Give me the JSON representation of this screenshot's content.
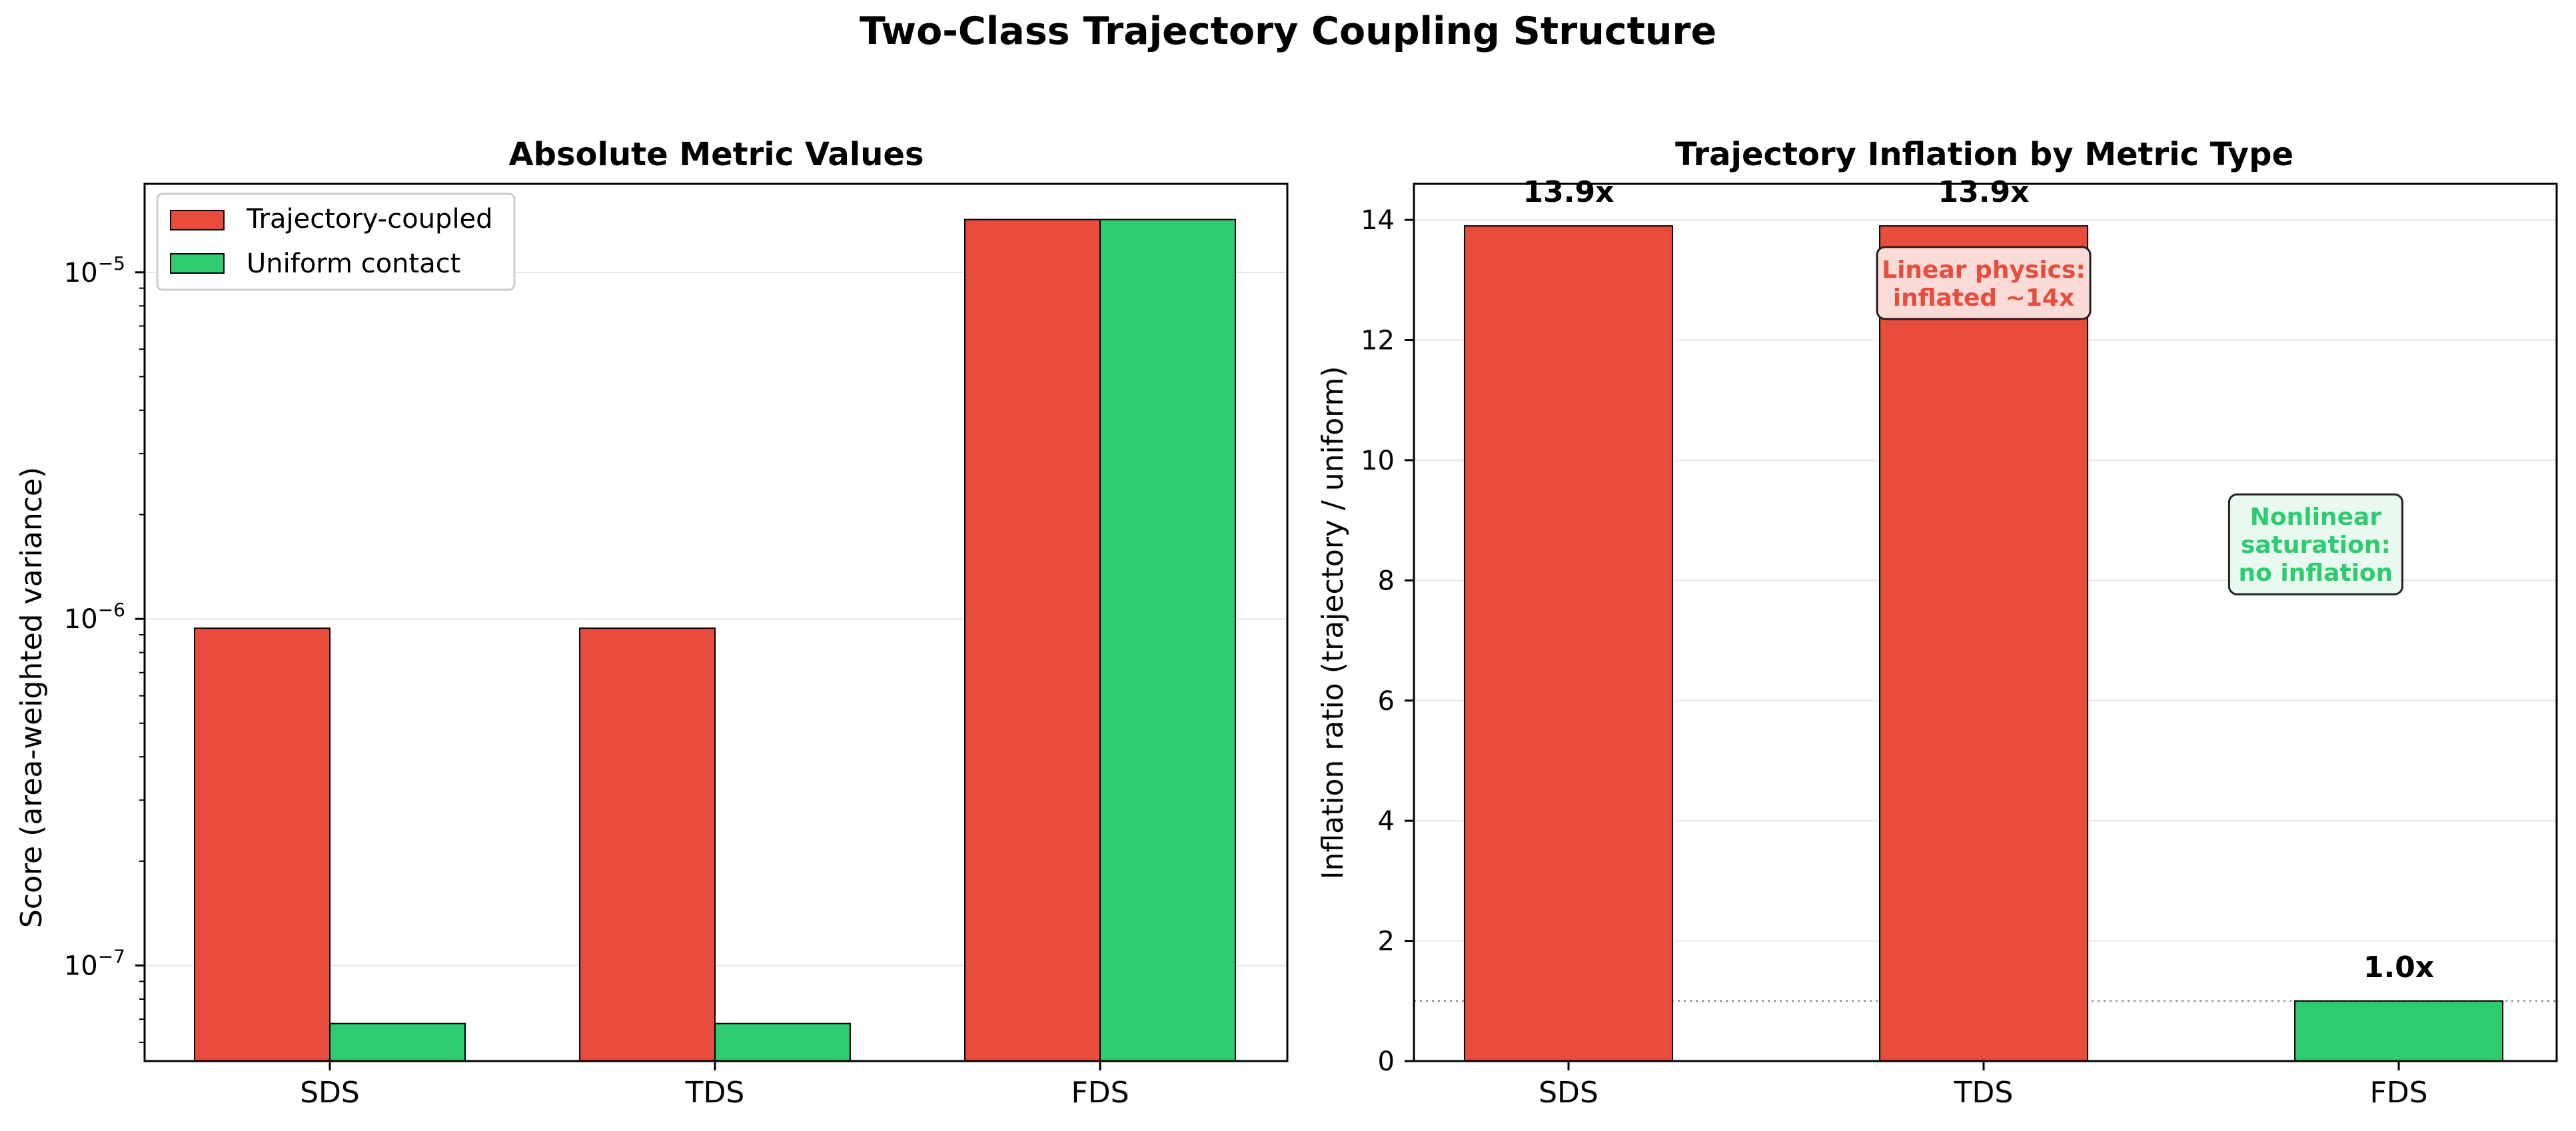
{
  "figure": {
    "title": "Two-Class Trajectory Coupling Structure"
  },
  "colors": {
    "trajectory": "#e74c3c",
    "uniform": "#2ecc71",
    "grid": "#e6e6e6",
    "refline": "#999999",
    "axis": "#000000"
  },
  "chart_data": [
    {
      "type": "bar",
      "title": "Absolute Metric Values",
      "xlabel": "",
      "ylabel": "Score (area-weighted variance)",
      "yscale": "log",
      "ylim": [
        5.3e-08,
        1.8e-05
      ],
      "yticks": [
        {
          "value": 1e-07,
          "base": "10",
          "exp": "−7"
        },
        {
          "value": 1e-06,
          "base": "10",
          "exp": "−6"
        },
        {
          "value": 1e-05,
          "base": "10",
          "exp": "−5"
        }
      ],
      "grid": true,
      "legend_position": "upper-left",
      "categories": [
        "SDS",
        "TDS",
        "FDS"
      ],
      "series": [
        {
          "name": "Trajectory-coupled",
          "color": "#e74c3c",
          "values": [
            9.4e-07,
            9.4e-07,
            1.42e-05
          ]
        },
        {
          "name": "Uniform contact",
          "color": "#2ecc71",
          "values": [
            6.8e-08,
            6.8e-08,
            1.42e-05
          ]
        }
      ]
    },
    {
      "type": "bar",
      "title": "Trajectory Inflation by Metric Type",
      "xlabel": "",
      "ylabel": "Inflation ratio (trajectory / uniform)",
      "ylim": [
        0,
        14.6
      ],
      "yticks": [
        0,
        2,
        4,
        6,
        8,
        10,
        12,
        14
      ],
      "grid": true,
      "reference_line": 1.0,
      "categories": [
        "SDS",
        "TDS",
        "FDS"
      ],
      "values": [
        13.9,
        13.9,
        1.0
      ],
      "bar_colors": [
        "#e74c3c",
        "#e74c3c",
        "#2ecc71"
      ],
      "data_labels": [
        "13.9x",
        "13.9x",
        "1.0x"
      ],
      "annotations": [
        {
          "lines": [
            "Linear physics:",
            "inflated ~14x"
          ],
          "color": "#e74c3c",
          "fill": "#fadbd8",
          "category": "TDS",
          "y": 12.95
        },
        {
          "lines": [
            "Nonlinear",
            "saturation:",
            "no inflation"
          ],
          "color": "#2ecc71",
          "fill": "#e9f9ef",
          "category_between": [
            "TDS",
            "FDS"
          ],
          "y": 8.6
        }
      ]
    }
  ]
}
